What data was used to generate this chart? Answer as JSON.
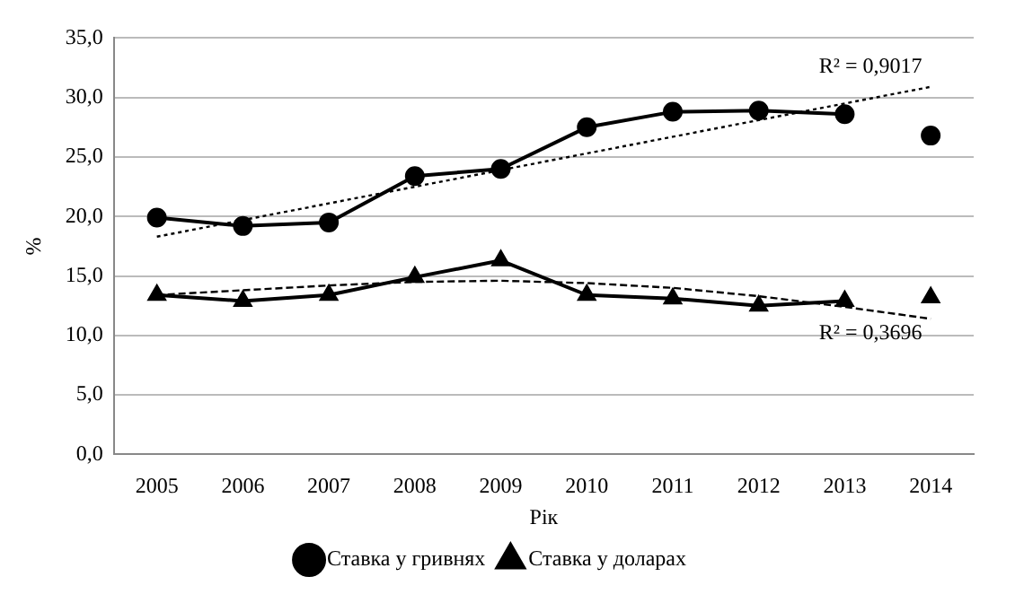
{
  "chart_data": {
    "type": "line",
    "xlabel": "Рік",
    "ylabel": "%",
    "categories": [
      "2005",
      "2006",
      "2007",
      "2008",
      "2009",
      "2010",
      "2011",
      "2012",
      "2013",
      "2014"
    ],
    "series": [
      {
        "name": "Ставка у гривнях",
        "color": "#000000",
        "marker": "circle",
        "values": [
          19.9,
          19.2,
          19.5,
          23.4,
          24.0,
          27.5,
          28.8,
          28.9,
          28.6,
          null
        ]
      },
      {
        "type": "scatter",
        "color": "#000000",
        "marker": "circle",
        "values": [
          null,
          null,
          null,
          null,
          null,
          null,
          null,
          null,
          null,
          26.8
        ]
      },
      {
        "name": "Ставка у доларах",
        "color": "#000000",
        "marker": "triangle",
        "values": [
          13.4,
          12.9,
          13.4,
          14.9,
          16.3,
          13.4,
          13.1,
          12.5,
          12.9,
          null
        ]
      },
      {
        "type": "scatter",
        "color": "#000000",
        "marker": "triangle",
        "values": [
          null,
          null,
          null,
          null,
          null,
          null,
          null,
          null,
          null,
          13.2
        ]
      },
      {
        "type": "line",
        "color": "#000000",
        "marker": "none",
        "line_style": "dotted",
        "values": [
          18.3,
          19.7,
          21.1,
          22.5,
          23.9,
          25.3,
          26.7,
          28.1,
          29.5,
          30.9
        ]
      },
      {
        "type": "line",
        "color": "#000000",
        "marker": "none",
        "line_style": "dashed",
        "values": [
          13.4,
          13.8,
          14.2,
          14.5,
          14.6,
          14.4,
          14.0,
          13.3,
          12.4,
          11.4
        ]
      }
    ],
    "ylim": [
      0,
      35
    ],
    "yticks": [
      {
        "value": 0,
        "label": "0,0"
      },
      {
        "value": 5,
        "label": "5,0"
      },
      {
        "value": 10,
        "label": "10,0"
      },
      {
        "value": 15,
        "label": "15,0"
      },
      {
        "value": 20,
        "label": "20,0"
      },
      {
        "value": 25,
        "label": "25,0"
      },
      {
        "value": 30,
        "label": "30,0"
      },
      {
        "value": 35,
        "label": "35,0"
      }
    ],
    "grid": "y",
    "legend": "bottom",
    "annotations": [
      "R² = 0,9017",
      "R² = 0,3696"
    ]
  }
}
